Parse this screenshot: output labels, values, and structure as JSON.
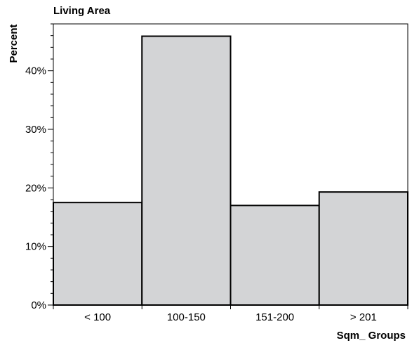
{
  "chart_data": {
    "type": "bar",
    "title": "Living Area",
    "xlabel": "Sqm_ Groups",
    "ylabel": "Percent",
    "categories": [
      "< 100",
      "100-150",
      "151-200",
      "> 201"
    ],
    "values": [
      17.5,
      45.9,
      17.0,
      19.3
    ],
    "ylim": [
      0,
      48
    ],
    "yticks": [
      0,
      10,
      20,
      30,
      40
    ],
    "ytick_labels": [
      "0%",
      "10%",
      "20%",
      "30%",
      "40%"
    ],
    "grid": false,
    "colors": {
      "bar_fill": "#d3d4d6",
      "bar_stroke": "#000000",
      "background": "#ffffff"
    }
  }
}
